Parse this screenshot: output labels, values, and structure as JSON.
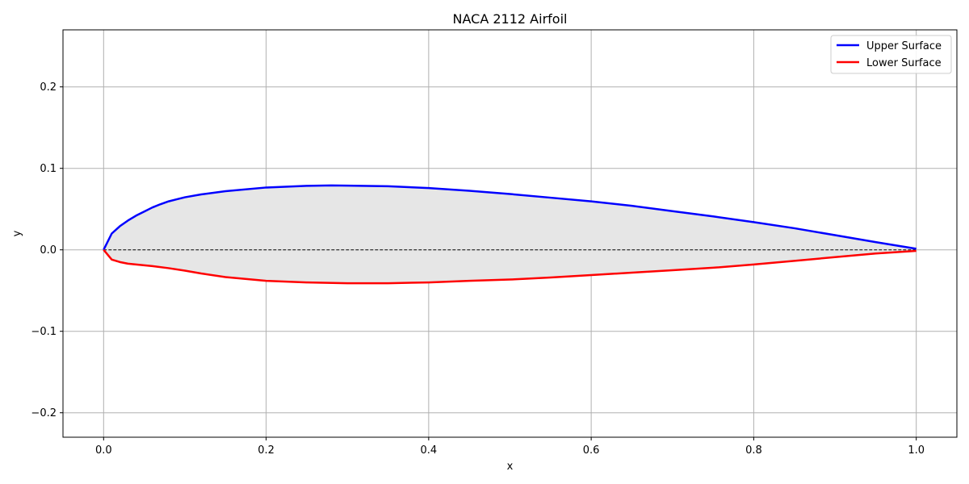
{
  "chart_data": {
    "type": "line",
    "title": "NACA 2112 Airfoil",
    "xlabel": "x",
    "ylabel": "y",
    "xlim": [
      -0.05,
      1.05
    ],
    "ylim": [
      -0.23,
      0.27
    ],
    "grid": true,
    "legend_position": "top-right",
    "xticks": [
      0.0,
      0.2,
      0.4,
      0.6,
      0.8,
      1.0
    ],
    "xtick_labels": [
      "0.0",
      "0.2",
      "0.4",
      "0.6",
      "0.8",
      "1.0"
    ],
    "yticks": [
      -0.2,
      -0.1,
      0.0,
      0.1,
      0.2
    ],
    "ytick_labels": [
      "−0.2",
      "−0.1",
      "0.0",
      "0.1",
      "0.2"
    ],
    "fill_color": "#e6e6e6",
    "camber_line": {
      "x": [
        0.0,
        1.0
      ],
      "y": [
        0.0,
        0.0
      ],
      "color": "#000000",
      "style": "dashed"
    },
    "series": [
      {
        "name": "Upper Surface",
        "color": "#0000ff",
        "x": [
          0.0,
          0.01,
          0.02,
          0.03,
          0.04,
          0.05,
          0.06,
          0.07,
          0.08,
          0.09,
          0.1,
          0.12,
          0.15,
          0.2,
          0.25,
          0.28,
          0.3,
          0.35,
          0.4,
          0.45,
          0.5,
          0.55,
          0.6,
          0.65,
          0.7,
          0.75,
          0.8,
          0.85,
          0.9,
          0.95,
          1.0
        ],
        "y": [
          0.0,
          0.02,
          0.029,
          0.036,
          0.042,
          0.047,
          0.052,
          0.056,
          0.0595,
          0.062,
          0.0645,
          0.068,
          0.072,
          0.0765,
          0.0785,
          0.079,
          0.0788,
          0.078,
          0.0758,
          0.0725,
          0.0685,
          0.064,
          0.0595,
          0.054,
          0.0475,
          0.041,
          0.034,
          0.0265,
          0.018,
          0.0095,
          0.0013
        ]
      },
      {
        "name": "Lower Surface",
        "color": "#ff0000",
        "x": [
          0.0,
          0.01,
          0.02,
          0.03,
          0.04,
          0.05,
          0.06,
          0.08,
          0.1,
          0.12,
          0.15,
          0.2,
          0.25,
          0.3,
          0.35,
          0.4,
          0.45,
          0.5,
          0.55,
          0.6,
          0.65,
          0.7,
          0.75,
          0.8,
          0.85,
          0.9,
          0.95,
          1.0
        ],
        "y": [
          0.0,
          -0.012,
          -0.015,
          -0.017,
          -0.018,
          -0.019,
          -0.02,
          -0.0225,
          -0.0255,
          -0.029,
          -0.0335,
          -0.038,
          -0.04,
          -0.041,
          -0.041,
          -0.04,
          -0.038,
          -0.0365,
          -0.034,
          -0.031,
          -0.028,
          -0.025,
          -0.022,
          -0.018,
          -0.0135,
          -0.009,
          -0.0045,
          -0.0013
        ]
      }
    ]
  }
}
